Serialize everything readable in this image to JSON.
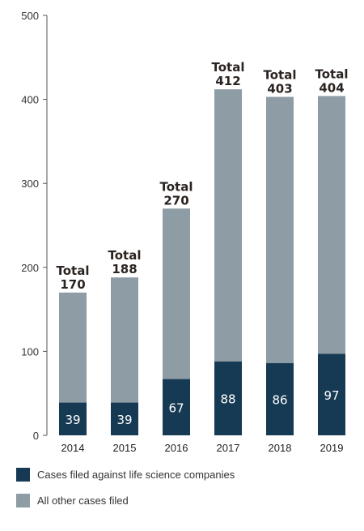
{
  "chart_data": {
    "type": "bar",
    "stacked": true,
    "categories": [
      "2014",
      "2015",
      "2016",
      "2017",
      "2018",
      "2019"
    ],
    "series": [
      {
        "name": "Cases filed against life science companies",
        "values": [
          39,
          39,
          67,
          88,
          86,
          97
        ],
        "color": "#173a54"
      },
      {
        "name": "All other cases filed",
        "values": [
          131,
          149,
          203,
          324,
          317,
          307
        ],
        "color": "#8e9ca6"
      }
    ],
    "totals": [
      170,
      188,
      270,
      412,
      403,
      404
    ],
    "total_prefix": "Total",
    "ylim": [
      0,
      500
    ],
    "yticks": [
      0,
      100,
      200,
      300,
      400,
      500
    ],
    "grid": false,
    "legend_position": "bottom-left",
    "title": "",
    "xlabel": "",
    "ylabel": ""
  },
  "legend": {
    "items": [
      {
        "label": "Cases filed against life science companies",
        "color": "#173a54"
      },
      {
        "label": "All other cases filed",
        "color": "#8e9ca6"
      }
    ]
  }
}
